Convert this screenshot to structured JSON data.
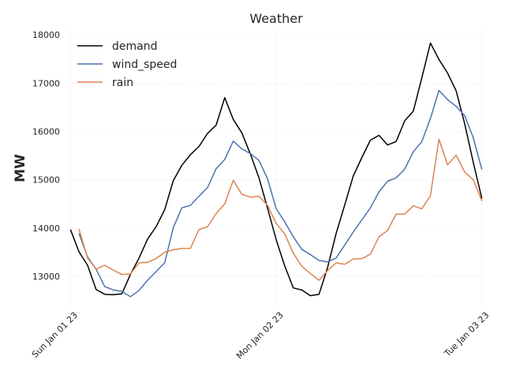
{
  "chart_data": {
    "type": "line",
    "title": "Weather",
    "xlabel": "",
    "ylabel": "MW",
    "ylim": [
      12380,
      18100
    ],
    "xlim": [
      -0.3,
      48.4
    ],
    "yticks": [
      13000,
      14000,
      15000,
      16000,
      17000,
      18000
    ],
    "ytick_labels": [
      "13000",
      "14000",
      "15000",
      "16000",
      "17000",
      "18000"
    ],
    "xticks": [
      0,
      24,
      48
    ],
    "xtick_labels": [
      "Sun Jan 01 23",
      "Mon Jan 02 23",
      "Tue Jan 03 23"
    ],
    "legend_position": "top-left",
    "grid": true,
    "series": [
      {
        "name": "demand",
        "color": "#000000",
        "x": [
          0,
          1,
          2,
          3,
          4,
          5,
          6,
          7,
          8,
          9,
          10,
          11,
          12,
          13,
          14,
          15,
          16,
          17,
          18,
          19,
          20,
          21,
          22,
          23,
          24,
          25,
          26,
          27,
          28,
          29,
          30,
          31,
          32,
          33,
          34,
          35,
          36,
          37,
          38,
          39,
          40,
          41,
          42,
          43,
          44,
          45,
          46,
          47,
          48
        ],
        "values": [
          13970,
          13510,
          13230,
          12730,
          12630,
          12620,
          12640,
          13040,
          13380,
          13770,
          14030,
          14380,
          14980,
          15300,
          15520,
          15690,
          15960,
          16130,
          16700,
          16250,
          15970,
          15530,
          15040,
          14410,
          13760,
          13220,
          12760,
          12720,
          12600,
          12630,
          13180,
          13890,
          14480,
          15080,
          15460,
          15820,
          15920,
          15720,
          15790,
          16220,
          16420,
          17110,
          17830,
          17490,
          17210,
          16840,
          16160,
          15360,
          14610
        ]
      },
      {
        "name": "wind_speed",
        "color": "#4c72b0",
        "x": [
          1,
          2,
          3,
          4,
          5,
          6,
          7,
          8,
          9,
          10,
          11,
          12,
          13,
          14,
          15,
          16,
          17,
          18,
          19,
          20,
          21,
          22,
          23,
          24,
          25,
          26,
          27,
          28,
          29,
          30,
          31,
          32,
          33,
          34,
          35,
          36,
          37,
          38,
          39,
          40,
          41,
          42,
          43,
          44,
          45,
          46,
          47,
          48
        ],
        "values": [
          13890,
          13400,
          13150,
          12790,
          12720,
          12690,
          12580,
          12710,
          12920,
          13100,
          13280,
          14010,
          14420,
          14470,
          14660,
          14840,
          15230,
          15420,
          15800,
          15640,
          15540,
          15400,
          15020,
          14400,
          14130,
          13820,
          13560,
          13450,
          13330,
          13300,
          13380,
          13650,
          13920,
          14170,
          14420,
          14750,
          14970,
          15040,
          15220,
          15580,
          15790,
          16270,
          16850,
          16660,
          16520,
          16330,
          15870,
          15210
        ]
      },
      {
        "name": "rain",
        "color": "#dd8452",
        "x": [
          1,
          2,
          3,
          4,
          5,
          6,
          7,
          8,
          9,
          10,
          11,
          12,
          13,
          14,
          15,
          16,
          17,
          18,
          19,
          20,
          21,
          22,
          23,
          24,
          25,
          26,
          27,
          28,
          29,
          30,
          31,
          32,
          33,
          34,
          35,
          36,
          37,
          38,
          39,
          40,
          41,
          42,
          43,
          44,
          45,
          46,
          47,
          48
        ],
        "values": [
          13980,
          13380,
          13150,
          13230,
          13130,
          13040,
          13050,
          13280,
          13290,
          13370,
          13500,
          13550,
          13580,
          13580,
          13970,
          14030,
          14300,
          14500,
          14990,
          14700,
          14640,
          14660,
          14470,
          14100,
          13880,
          13480,
          13210,
          13060,
          12920,
          13120,
          13280,
          13250,
          13360,
          13370,
          13460,
          13820,
          13950,
          14290,
          14290,
          14460,
          14400,
          14670,
          15840,
          15310,
          15510,
          15160,
          15000,
          14560
        ]
      }
    ]
  }
}
